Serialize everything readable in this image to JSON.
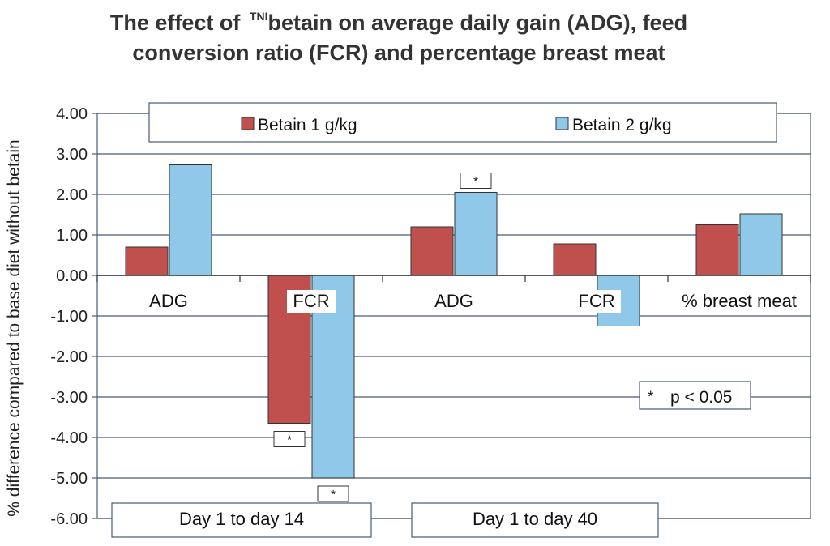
{
  "chart_data": {
    "type": "bar",
    "title_sup": "TNI",
    "title_line1": "betain on average daily gain (ADG), feed",
    "title_prefix": "The effect of ",
    "title_line2": "conversion ratio (FCR) and percentage breast meat",
    "ylabel": "% difference compared to base diet without betain",
    "xlabel": "",
    "ylim": [
      -6,
      4
    ],
    "yticks": [
      "4.00",
      "3.00",
      "2.00",
      "1.00",
      "0.00",
      "-1.00",
      "-2.00",
      "-3.00",
      "-4.00",
      "-5.00",
      "-6.00"
    ],
    "grid": true,
    "legend_position": "top",
    "categories": [
      "ADG",
      "FCR",
      "ADG",
      "FCR",
      "% breast meat"
    ],
    "groups": [
      {
        "label": "Day 1 to day 14",
        "categories": [
          "ADG",
          "FCR"
        ]
      },
      {
        "label": "Day 1 to day 40",
        "categories": [
          "ADG",
          "FCR"
        ]
      }
    ],
    "series": [
      {
        "name": "Betain 1 g/kg",
        "color": "#c0504d",
        "values": [
          0.7,
          -3.65,
          1.2,
          0.78,
          1.25
        ],
        "significant": [
          false,
          true,
          false,
          false,
          false
        ]
      },
      {
        "name": "Betain 2 g/kg",
        "color": "#8fc8e8",
        "values": [
          2.73,
          -5.0,
          2.05,
          -1.25,
          1.52
        ],
        "significant": [
          false,
          true,
          true,
          false,
          false
        ]
      }
    ],
    "annotation": {
      "marker": "*",
      "text": "p < 0.05"
    }
  }
}
